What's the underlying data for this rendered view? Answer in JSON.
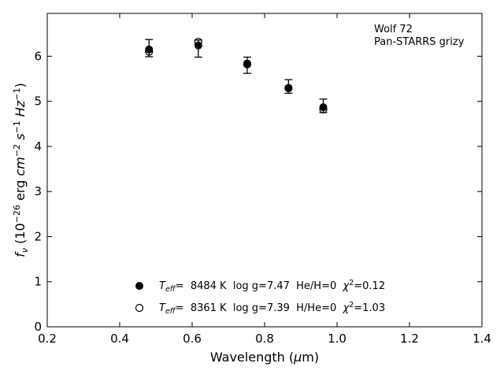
{
  "chart_data": {
    "type": "scatter",
    "xlabel": "Wavelength (μm)",
    "ylabel": "fν (10⁻²⁶ erg cm⁻² s⁻¹ Hz⁻¹)",
    "xlim": [
      0.2,
      1.4
    ],
    "ylim": [
      0,
      6.95
    ],
    "xticks": [
      "0.2",
      "0.4",
      "0.6",
      "0.8",
      "1.0",
      "1.2",
      "1.4"
    ],
    "yticks": [
      "0",
      "1",
      "2",
      "3",
      "4",
      "5",
      "6"
    ],
    "grid": false,
    "annotation": [
      "Wolf 72",
      "Pan-STARRS grizy"
    ],
    "observed": {
      "x": [
        0.481,
        0.617,
        0.752,
        0.866,
        0.962
      ],
      "y": [
        6.18,
        6.17,
        5.8,
        5.33,
        4.9
      ],
      "yerr": [
        0.19,
        0.19,
        0.18,
        0.15,
        0.15
      ]
    },
    "series": [
      {
        "marker": "filled-circle",
        "x": [
          0.481,
          0.617,
          0.752,
          0.866,
          0.962
        ],
        "y": [
          6.15,
          6.24,
          5.84,
          5.3,
          4.87
        ]
      },
      {
        "marker": "open-circle",
        "x": [
          0.481,
          0.617,
          0.752,
          0.866,
          0.962
        ],
        "y": [
          6.1,
          6.32,
          5.82,
          5.29,
          4.82
        ]
      }
    ],
    "legend": {
      "placement": "lower-center",
      "entries": [
        {
          "marker": "filled-circle",
          "teff_value": "8484 K",
          "logg": "log g=7.47",
          "comp": "He/H=0",
          "chi": "=0.12"
        },
        {
          "marker": "open-circle",
          "teff_value": "8361 K",
          "logg": "log g=7.39",
          "comp": "H/He=0",
          "chi": "=1.03"
        }
      ]
    }
  }
}
